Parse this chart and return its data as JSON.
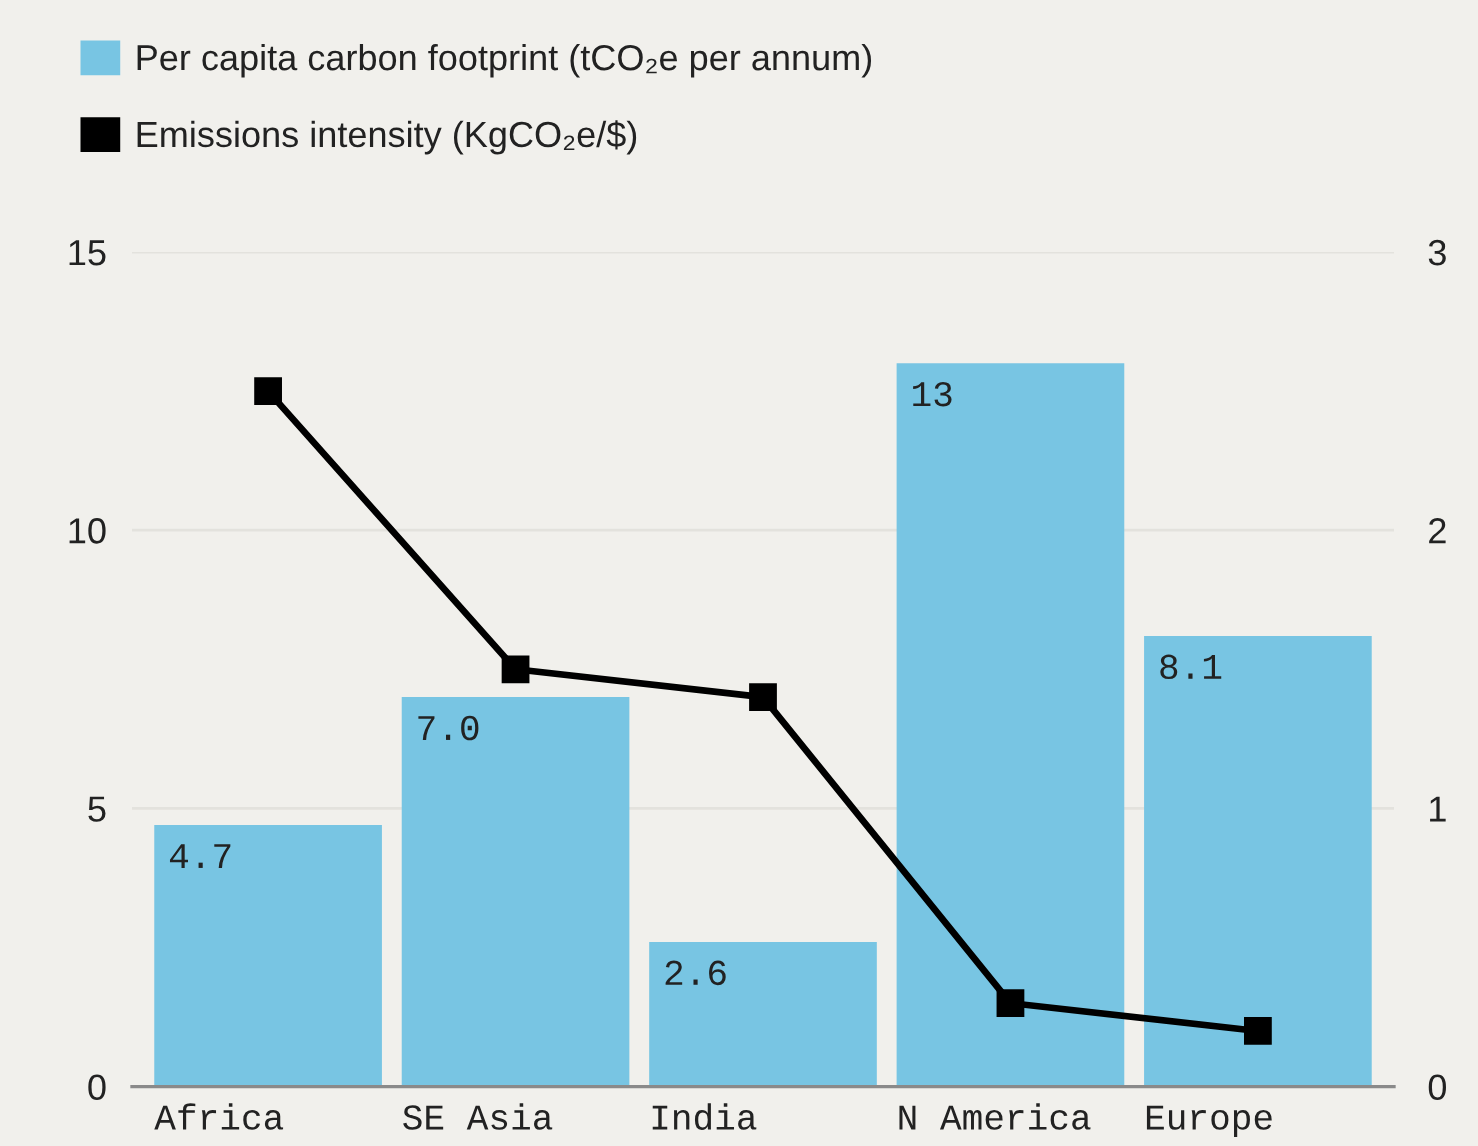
{
  "chart_data": {
    "type": "bar",
    "categories": [
      "Africa",
      "SE Asia",
      "India",
      "N America",
      "Europe"
    ],
    "series": [
      {
        "name": "Per capita carbon footprint (tCO₂e per annum)",
        "color": "#78c5e3",
        "values": [
          4.7,
          7.0,
          2.6,
          13,
          8.1
        ],
        "value_labels": [
          "4.7",
          "7.0",
          "2.6",
          "13",
          "8.1"
        ]
      },
      {
        "name": "Emissions intensity (KgCO₂e/$)",
        "type": "line",
        "axis": "y2",
        "color": "#000000",
        "values": [
          2.5,
          1.5,
          1.4,
          0.3,
          0.2
        ],
        "marker": "square",
        "line_style": "solid"
      }
    ],
    "ylim": [
      0,
      15
    ],
    "yticks": [
      0,
      5,
      10,
      15
    ],
    "y2lim": [
      0,
      3
    ],
    "y2ticks": [
      0,
      1,
      2,
      3
    ],
    "grid": "y",
    "legend": "top left"
  }
}
